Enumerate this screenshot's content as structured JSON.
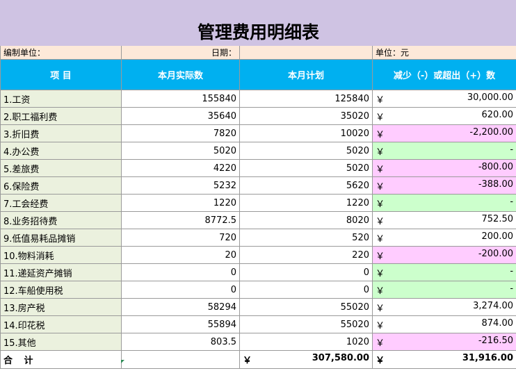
{
  "title": "管理费用明细表",
  "info": {
    "unit_label": "编制单位：",
    "date_label": "日期：",
    "currency_label": "单位：元"
  },
  "headers": [
    "项  目",
    "本月实际数",
    "本月计划",
    "减少（-）或超出（+）数"
  ],
  "currency_symbol": "￥",
  "rows": [
    {
      "item": "1.工资",
      "actual": "155840",
      "plan": "125840",
      "diff": "30,000.00",
      "status": "pos"
    },
    {
      "item": "2.职工福利费",
      "actual": "35640",
      "plan": "35020",
      "diff": "620.00",
      "status": "pos"
    },
    {
      "item": "3.折旧费",
      "actual": "7820",
      "plan": "10020",
      "diff": "-2,200.00",
      "status": "neg"
    },
    {
      "item": "4.办公费",
      "actual": "5020",
      "plan": "5020",
      "diff": "-",
      "status": "zero"
    },
    {
      "item": "5.差旅费",
      "actual": "4220",
      "plan": "5020",
      "diff": "-800.00",
      "status": "neg"
    },
    {
      "item": "6.保险费",
      "actual": "5232",
      "plan": "5620",
      "diff": "-388.00",
      "status": "neg"
    },
    {
      "item": "7.工会经费",
      "actual": "1220",
      "plan": "1220",
      "diff": "-",
      "status": "zero"
    },
    {
      "item": "8.业务招待费",
      "actual": "8772.5",
      "plan": "8020",
      "diff": "752.50",
      "status": "pos"
    },
    {
      "item": "9.低值易耗品摊销",
      "actual": "720",
      "plan": "520",
      "diff": "200.00",
      "status": "pos"
    },
    {
      "item": "10.物料消耗",
      "actual": "20",
      "plan": "220",
      "diff": "-200.00",
      "status": "neg"
    },
    {
      "item": "11.递延资产摊销",
      "actual": "0",
      "plan": "0",
      "diff": "-",
      "status": "zero"
    },
    {
      "item": "12.车船使用税",
      "actual": "0",
      "plan": "0",
      "diff": "-",
      "status": "zero"
    },
    {
      "item": "13.房产税",
      "actual": "58294",
      "plan": "55020",
      "diff": "3,274.00",
      "status": "pos"
    },
    {
      "item": "14.印花税",
      "actual": "55894",
      "plan": "55020",
      "diff": "874.00",
      "status": "pos"
    },
    {
      "item": "15.其他",
      "actual": "803.5",
      "plan": "1020",
      "diff": "-216.50",
      "status": "neg"
    }
  ],
  "total": {
    "label": "合 计",
    "actual": "",
    "plan": "307,580.00",
    "diff": "31,916.00"
  },
  "colors": {
    "title_bg": "#cfc3e3",
    "info_bg": "#fde9d9",
    "header_bg": "#00b0f0",
    "item_bg": "#ebf1de",
    "negative_bg": "#ffccff",
    "zero_bg": "#ccffcc"
  }
}
